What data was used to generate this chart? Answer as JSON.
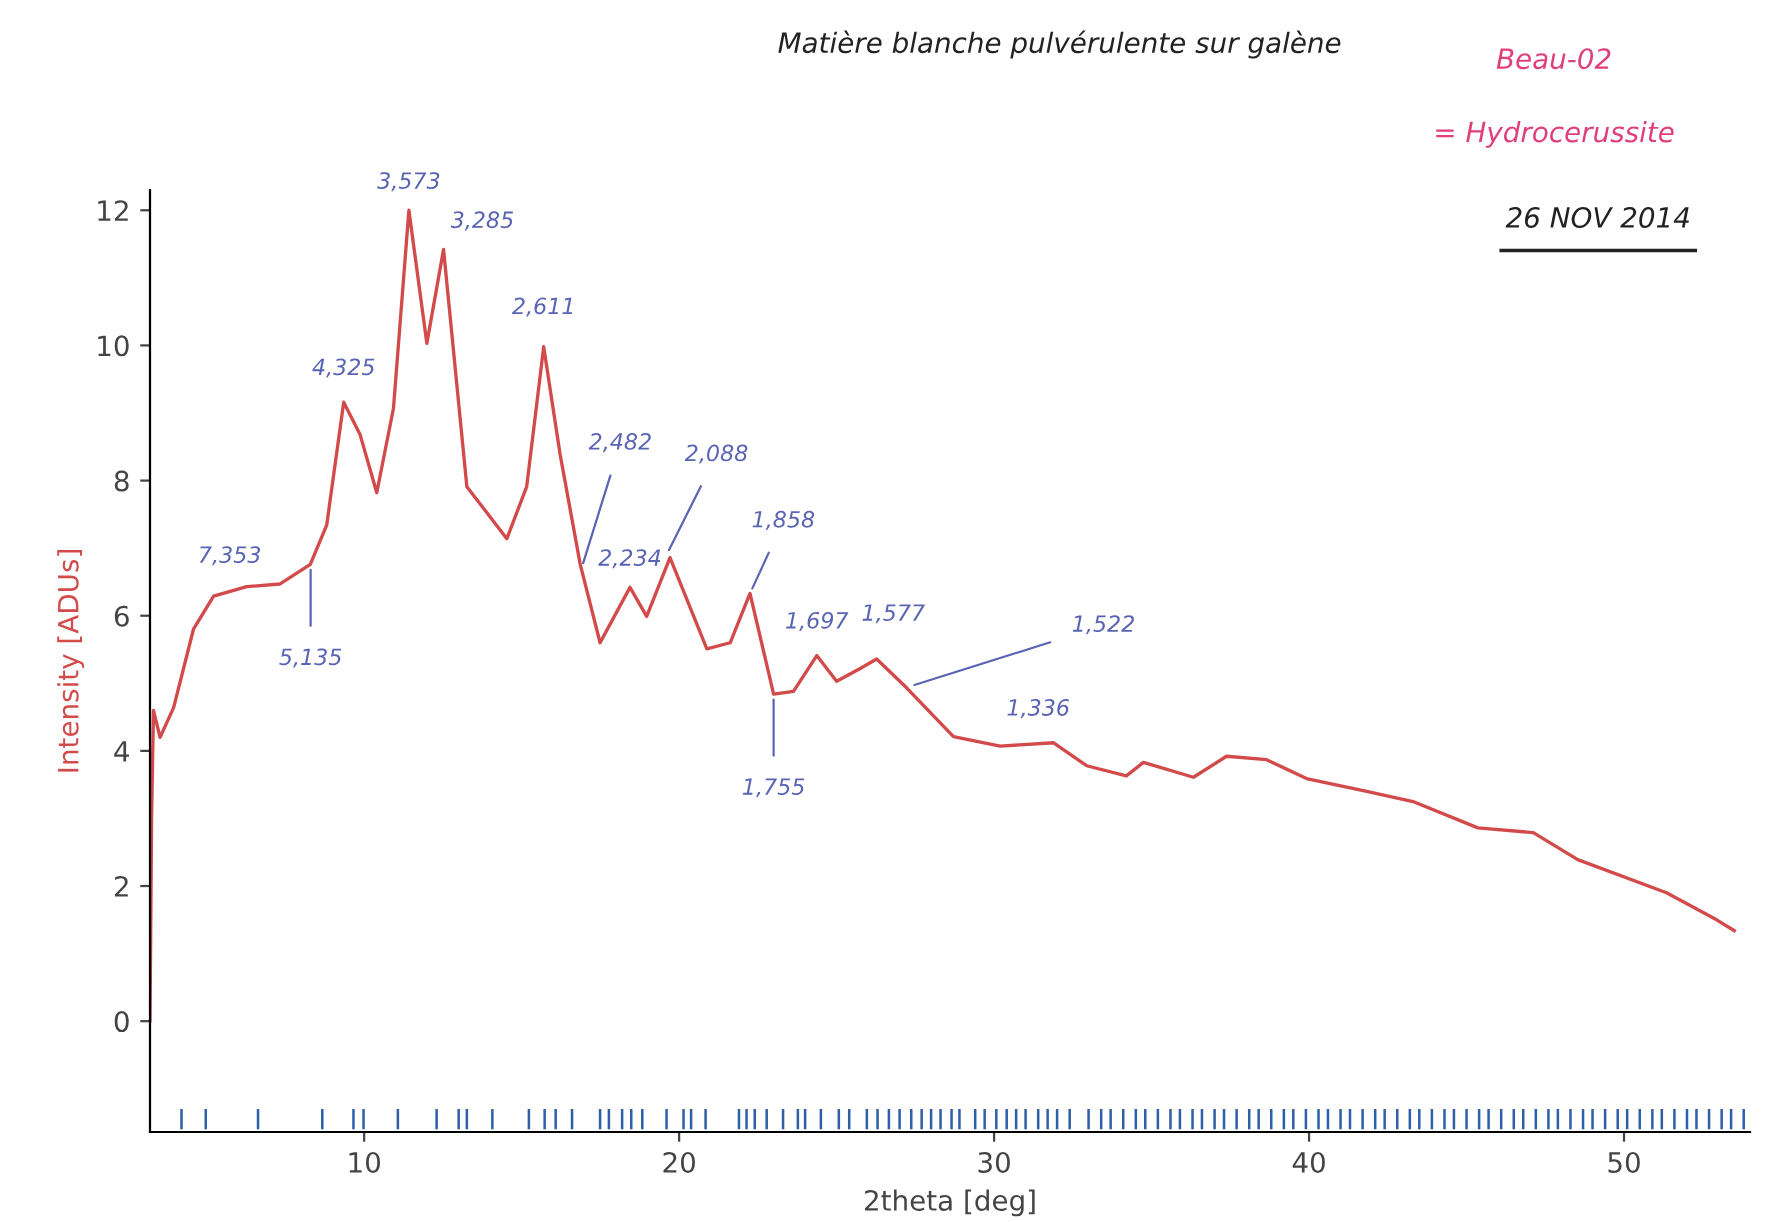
{
  "chart_data": {
    "type": "line",
    "title": "Matière blanche pulvérulente sur galène",
    "xlabel": "2theta [deg]",
    "ylabel": "Intensity [ADUs]",
    "xlim": [
      3.2,
      54
    ],
    "ylim": [
      -1.64,
      12.3
    ],
    "xticks": [
      10,
      20,
      30,
      40,
      50
    ],
    "yticks": [
      0,
      2,
      4,
      6,
      8,
      10,
      12
    ],
    "grid": false,
    "legend": false,
    "marker": "none",
    "line_style": "solid",
    "series": [
      {
        "color": "#d24a4a",
        "x": [
          3.2,
          3.25,
          3.31,
          3.52,
          3.95,
          4.58,
          5.22,
          6.27,
          7.33,
          8.29,
          8.81,
          9.35,
          9.87,
          10.4,
          10.93,
          11.42,
          11.99,
          12.52,
          13.26,
          14.53,
          15.16,
          15.7,
          16.22,
          16.86,
          17.49,
          18.44,
          18.97,
          19.71,
          20.88,
          21.62,
          22.25,
          23.0,
          23.63,
          24.37,
          25.0,
          25.75,
          26.27,
          27.23,
          28.71,
          30.19,
          31.89,
          32.94,
          34.2,
          34.74,
          36.33,
          37.38,
          38.65,
          39.92,
          41.83,
          43.3,
          45.36,
          47.12,
          48.53,
          51.35,
          52.94,
          53.5
        ],
        "values": [
          0,
          3.0,
          4.6,
          4.2,
          4.64,
          5.8,
          6.29,
          6.43,
          6.47,
          6.76,
          7.34,
          9.16,
          8.68,
          7.82,
          9.07,
          12.0,
          10.03,
          11.42,
          7.91,
          7.14,
          7.91,
          9.98,
          8.39,
          6.76,
          5.6,
          6.42,
          5.99,
          6.86,
          5.51,
          5.6,
          6.33,
          4.84,
          4.88,
          5.41,
          5.03,
          5.22,
          5.36,
          4.93,
          4.21,
          4.07,
          4.12,
          3.78,
          3.63,
          3.83,
          3.61,
          3.92,
          3.87,
          3.59,
          3.4,
          3.25,
          2.86,
          2.79,
          2.39,
          1.9,
          1.5,
          1.34
        ]
      },
      {
        "type": "bar",
        "color": "#2e5fa8",
        "base": [
          -1.6,
          -1.6,
          -1.6,
          -1.6,
          -1.6,
          -1.6,
          -1.6,
          -1.6,
          -1.6,
          -1.6,
          -1.6,
          -1.6,
          -1.6,
          -1.6,
          -1.6,
          -1.6,
          -1.6,
          -1.6,
          -1.6,
          -1.6,
          -1.6,
          -1.6,
          -1.6,
          -1.6,
          -1.6,
          -1.6,
          -1.6,
          -1.6,
          -1.6,
          -1.6,
          -1.6,
          -1.6,
          -1.6,
          -1.6,
          -1.6,
          -1.6,
          -1.6,
          -1.6,
          -1.6,
          -1.6,
          -1.6,
          -1.6,
          -1.6,
          -1.6,
          -1.6,
          -1.6,
          -1.6,
          -1.6,
          -1.6,
          -1.6,
          -1.6,
          -1.6,
          -1.6,
          -1.6,
          -1.6,
          -1.6,
          -1.6,
          -1.6,
          -1.6,
          -1.6,
          -1.6,
          -1.6,
          -1.6,
          -1.6,
          -1.6,
          -1.6,
          -1.6,
          -1.6,
          -1.6,
          -1.6,
          -1.6,
          -1.6,
          -1.6,
          -1.6,
          -1.6,
          -1.6,
          -1.6,
          -1.6,
          -1.6,
          -1.6,
          -1.6,
          -1.6,
          -1.6,
          -1.6,
          -1.6,
          -1.6,
          -1.6,
          -1.6,
          -1.6,
          -1.6,
          -1.6,
          -1.6,
          -1.6,
          -1.6,
          -1.6,
          -1.6,
          -1.6,
          -1.6,
          -1.6,
          -1.6,
          -1.6,
          -1.6,
          -1.6,
          -1.6,
          -1.6,
          -1.6,
          -1.6,
          -1.6,
          -1.6,
          -1.6,
          -1.6,
          -1.6
        ],
        "x": [
          4.2,
          4.97,
          6.63,
          8.67,
          9.66,
          9.98,
          11.07,
          12.3,
          13.0,
          13.26,
          14.07,
          15.23,
          15.73,
          16.08,
          16.6,
          17.49,
          17.77,
          18.19,
          18.48,
          18.83,
          19.6,
          20.14,
          20.38,
          20.84,
          21.9,
          22.14,
          22.4,
          22.78,
          23.3,
          23.77,
          24.0,
          24.5,
          25.07,
          25.4,
          25.96,
          26.3,
          26.66,
          27.0,
          27.37,
          27.7,
          28.0,
          28.3,
          28.65,
          28.9,
          29.4,
          29.7,
          30.07,
          30.4,
          30.7,
          31.0,
          31.4,
          31.7,
          32.0,
          32.4,
          33.0,
          33.4,
          33.7,
          34.1,
          34.5,
          34.8,
          35.2,
          35.6,
          35.9,
          36.3,
          36.6,
          37.0,
          37.3,
          37.7,
          38.1,
          38.4,
          38.8,
          39.2,
          39.5,
          39.9,
          40.3,
          40.6,
          41.0,
          41.3,
          41.7,
          42.1,
          42.4,
          42.8,
          43.2,
          43.5,
          43.9,
          44.3,
          44.6,
          45.0,
          45.4,
          45.7,
          46.1,
          46.5,
          46.8,
          47.2,
          47.6,
          47.9,
          48.3,
          48.7,
          49.0,
          49.4,
          49.8,
          50.1,
          50.5,
          50.9,
          51.2,
          51.6,
          52.0,
          52.3,
          52.7,
          53.1,
          53.4,
          53.8
        ],
        "values": [
          0.3,
          0.3,
          0.3,
          0.3,
          0.3,
          0.3,
          0.3,
          0.3,
          0.3,
          0.3,
          0.3,
          0.3,
          0.3,
          0.3,
          0.3,
          0.3,
          0.3,
          0.3,
          0.3,
          0.3,
          0.3,
          0.3,
          0.3,
          0.3,
          0.3,
          0.3,
          0.3,
          0.3,
          0.3,
          0.3,
          0.3,
          0.3,
          0.3,
          0.3,
          0.3,
          0.3,
          0.3,
          0.3,
          0.3,
          0.3,
          0.3,
          0.3,
          0.3,
          0.3,
          0.3,
          0.3,
          0.3,
          0.3,
          0.3,
          0.3,
          0.3,
          0.3,
          0.3,
          0.3,
          0.3,
          0.3,
          0.3,
          0.3,
          0.3,
          0.3,
          0.3,
          0.3,
          0.3,
          0.3,
          0.3,
          0.3,
          0.3,
          0.3,
          0.3,
          0.3,
          0.3,
          0.3,
          0.3,
          0.3,
          0.3,
          0.3,
          0.3,
          0.3,
          0.3,
          0.3,
          0.3,
          0.3,
          0.3,
          0.3,
          0.3,
          0.3,
          0.3,
          0.3,
          0.3,
          0.3,
          0.3,
          0.3,
          0.3,
          0.3,
          0.3,
          0.3,
          0.3,
          0.3,
          0.3,
          0.3,
          0.3,
          0.3,
          0.3,
          0.3,
          0.3,
          0.3,
          0.3,
          0.3,
          0.3,
          0.3,
          0.3,
          0.3
        ]
      }
    ],
    "annotations": [
      {
        "text": "7,353",
        "x": 5.2,
        "y": 6.3
      },
      {
        "text": "5,135",
        "x": 8.3,
        "y": 6.76
      },
      {
        "text": "4,325",
        "x": 9.35,
        "y": 9.16
      },
      {
        "text": "3,573",
        "x": 11.42,
        "y": 12.0
      },
      {
        "text": "3,285",
        "x": 12.52,
        "y": 11.42
      },
      {
        "text": "2,611",
        "x": 15.7,
        "y": 9.98
      },
      {
        "text": "2,482",
        "x": 16.9,
        "y": 6.7
      },
      {
        "text": "2,234",
        "x": 18.44,
        "y": 6.42
      },
      {
        "text": "2,088",
        "x": 19.6,
        "y": 6.9
      },
      {
        "text": "1,858",
        "x": 22.25,
        "y": 6.33
      },
      {
        "text": "1,755",
        "x": 23.0,
        "y": 4.84
      },
      {
        "text": "1,697",
        "x": 24.37,
        "y": 5.41
      },
      {
        "text": "1,577",
        "x": 26.27,
        "y": 5.36
      },
      {
        "text": "1,522",
        "x": 27.3,
        "y": 4.95
      },
      {
        "text": "1,336",
        "x": 31.4,
        "y": 4.12
      },
      "Beau-02",
      "= Hydrocerussite",
      "26 NOV 2014"
    ]
  }
}
